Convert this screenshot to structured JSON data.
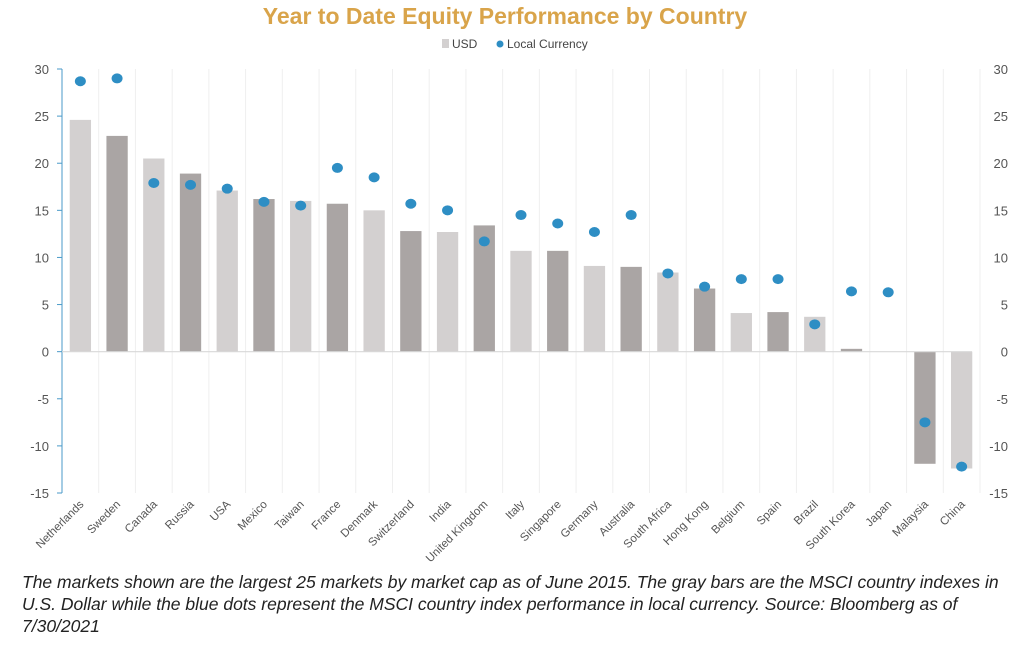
{
  "chart_data": {
    "type": "bar",
    "title": "Year to Date Equity Performance by Country",
    "legend": {
      "position": "top-center",
      "items": [
        "USD",
        "Local Currency"
      ]
    },
    "ylim": [
      -15,
      30
    ],
    "yticks": [
      30,
      25,
      20,
      15,
      10,
      5,
      0,
      -5,
      -10,
      -15
    ],
    "grid": "vertical",
    "categories": [
      "Netherlands",
      "Sweden",
      "Canada",
      "Russia",
      "USA",
      "Mexico",
      "Taiwan",
      "France",
      "Denmark",
      "Switzerland",
      "India",
      "United Kingdom",
      "Italy",
      "Singapore",
      "Germany",
      "Australia",
      "South Africa",
      "Hong Kong",
      "Belgium",
      "Spain",
      "Brazil",
      "South Korea",
      "Japan",
      "Malaysia",
      "China"
    ],
    "series": [
      {
        "name": "USD",
        "type": "bar",
        "colors": [
          "#d3d0d0",
          "#aaa5a4"
        ],
        "values": [
          24.6,
          22.9,
          20.5,
          18.9,
          17.1,
          16.2,
          16.0,
          15.7,
          15.0,
          12.8,
          12.7,
          13.4,
          10.7,
          10.7,
          9.1,
          9.0,
          8.4,
          6.7,
          4.1,
          4.2,
          3.7,
          0.3,
          0.0,
          -11.9,
          -12.4
        ]
      },
      {
        "name": "Local Currency",
        "type": "scatter",
        "color": "#2e8ec4",
        "values": [
          28.7,
          29.0,
          17.9,
          17.7,
          17.3,
          15.9,
          15.5,
          19.5,
          18.5,
          15.7,
          15.0,
          11.7,
          14.5,
          13.6,
          12.7,
          14.5,
          8.3,
          6.9,
          7.7,
          7.7,
          2.9,
          6.4,
          6.3,
          -7.5,
          -12.2
        ]
      }
    ]
  },
  "caption": "The markets shown are the largest 25 markets by market cap as of June 2015. The gray bars are the MSCI country indexes in U.S. Dollar while the blue dots represent the MSCI country index performance in local currency. Source: Bloomberg as of 7/30/2021"
}
